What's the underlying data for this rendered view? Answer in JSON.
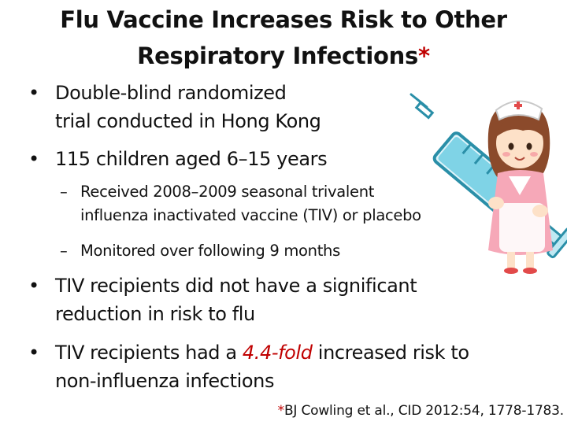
{
  "title": {
    "line1": "Flu Vaccine Increases Risk to Other",
    "line2": "Respiratory Infections",
    "asterisk": "*"
  },
  "bullets": [
    {
      "marker": "•",
      "lines": [
        "Double-blind randomized",
        "trial conducted in Hong Kong"
      ]
    },
    {
      "marker": "•",
      "lines": [
        "115 children aged 6–15 years"
      ]
    }
  ],
  "sub_bullets": [
    {
      "marker": "–",
      "lines": [
        "Received 2008–2009 seasonal trivalent",
        "influenza inactivated vaccine (TIV) or placebo"
      ]
    },
    {
      "marker": "–",
      "lines": [
        "Monitored over following 9 months"
      ]
    }
  ],
  "bullets2": [
    {
      "marker": "•",
      "lines": [
        "TIV recipients did not have a significant",
        "reduction in risk to flu"
      ]
    },
    {
      "marker": "•",
      "pre": "TIV recipients had a ",
      "highlight": "4.4-fold",
      "post": " increased risk to",
      "line2": "non-influenza infections"
    }
  ],
  "citation": {
    "asterisk": "*",
    "text": "BJ Cowling et al., CID 2012:54, 1778-1783."
  },
  "illustration": {
    "icon": "nurse-with-syringe-icon"
  },
  "colors": {
    "accent": "#c00000",
    "syringe_outline": "#2a8fa8",
    "syringe_liquid": "#7fd3e6",
    "nurse_hair": "#8b4a2b"
  }
}
